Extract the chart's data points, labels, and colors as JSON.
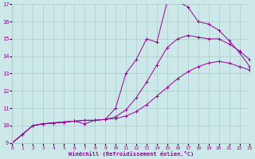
{
  "xlabel": "Windchill (Refroidissement éolien,°C)",
  "xlim": [
    0,
    23
  ],
  "ylim": [
    9,
    17
  ],
  "xticks": [
    0,
    1,
    2,
    3,
    4,
    5,
    6,
    7,
    8,
    9,
    10,
    11,
    12,
    13,
    14,
    15,
    16,
    17,
    18,
    19,
    20,
    21,
    22,
    23
  ],
  "yticks": [
    9,
    10,
    11,
    12,
    13,
    14,
    15,
    16,
    17
  ],
  "bg_color": "#cce8e8",
  "line_color": "#990099",
  "grid_color": "#aacccc",
  "line1_x": [
    0,
    1,
    2,
    3,
    4,
    5,
    6,
    7,
    8,
    9,
    10,
    11,
    12,
    13,
    14,
    15,
    16,
    17,
    18,
    19,
    20,
    21,
    22,
    23
  ],
  "line1_y": [
    9.0,
    9.5,
    10.0,
    10.1,
    10.15,
    10.2,
    10.25,
    10.3,
    10.3,
    10.35,
    10.4,
    10.55,
    10.8,
    11.2,
    11.7,
    12.2,
    12.7,
    13.1,
    13.4,
    13.6,
    13.7,
    13.6,
    13.4,
    13.2
  ],
  "line2_x": [
    0,
    1,
    2,
    3,
    4,
    5,
    6,
    7,
    8,
    9,
    10,
    11,
    12,
    13,
    14,
    15,
    16,
    17,
    18,
    19,
    20,
    21,
    22,
    23
  ],
  "line2_y": [
    9.0,
    9.5,
    10.0,
    10.1,
    10.15,
    10.2,
    10.25,
    10.3,
    10.3,
    10.35,
    10.5,
    10.9,
    11.6,
    12.5,
    13.5,
    14.5,
    15.0,
    15.2,
    15.1,
    15.0,
    15.0,
    14.7,
    14.3,
    13.8
  ],
  "line3_x": [
    0,
    1,
    2,
    3,
    4,
    5,
    6,
    7,
    8,
    9,
    10,
    11,
    12,
    13,
    14,
    15,
    16,
    17,
    18,
    19,
    20,
    21,
    22,
    23
  ],
  "line3_y": [
    9.0,
    9.5,
    10.0,
    10.1,
    10.15,
    10.2,
    10.25,
    10.1,
    10.3,
    10.35,
    11.0,
    13.0,
    13.8,
    15.0,
    14.8,
    17.15,
    17.15,
    16.85,
    16.0,
    15.85,
    15.5,
    14.9,
    14.2,
    13.4
  ]
}
